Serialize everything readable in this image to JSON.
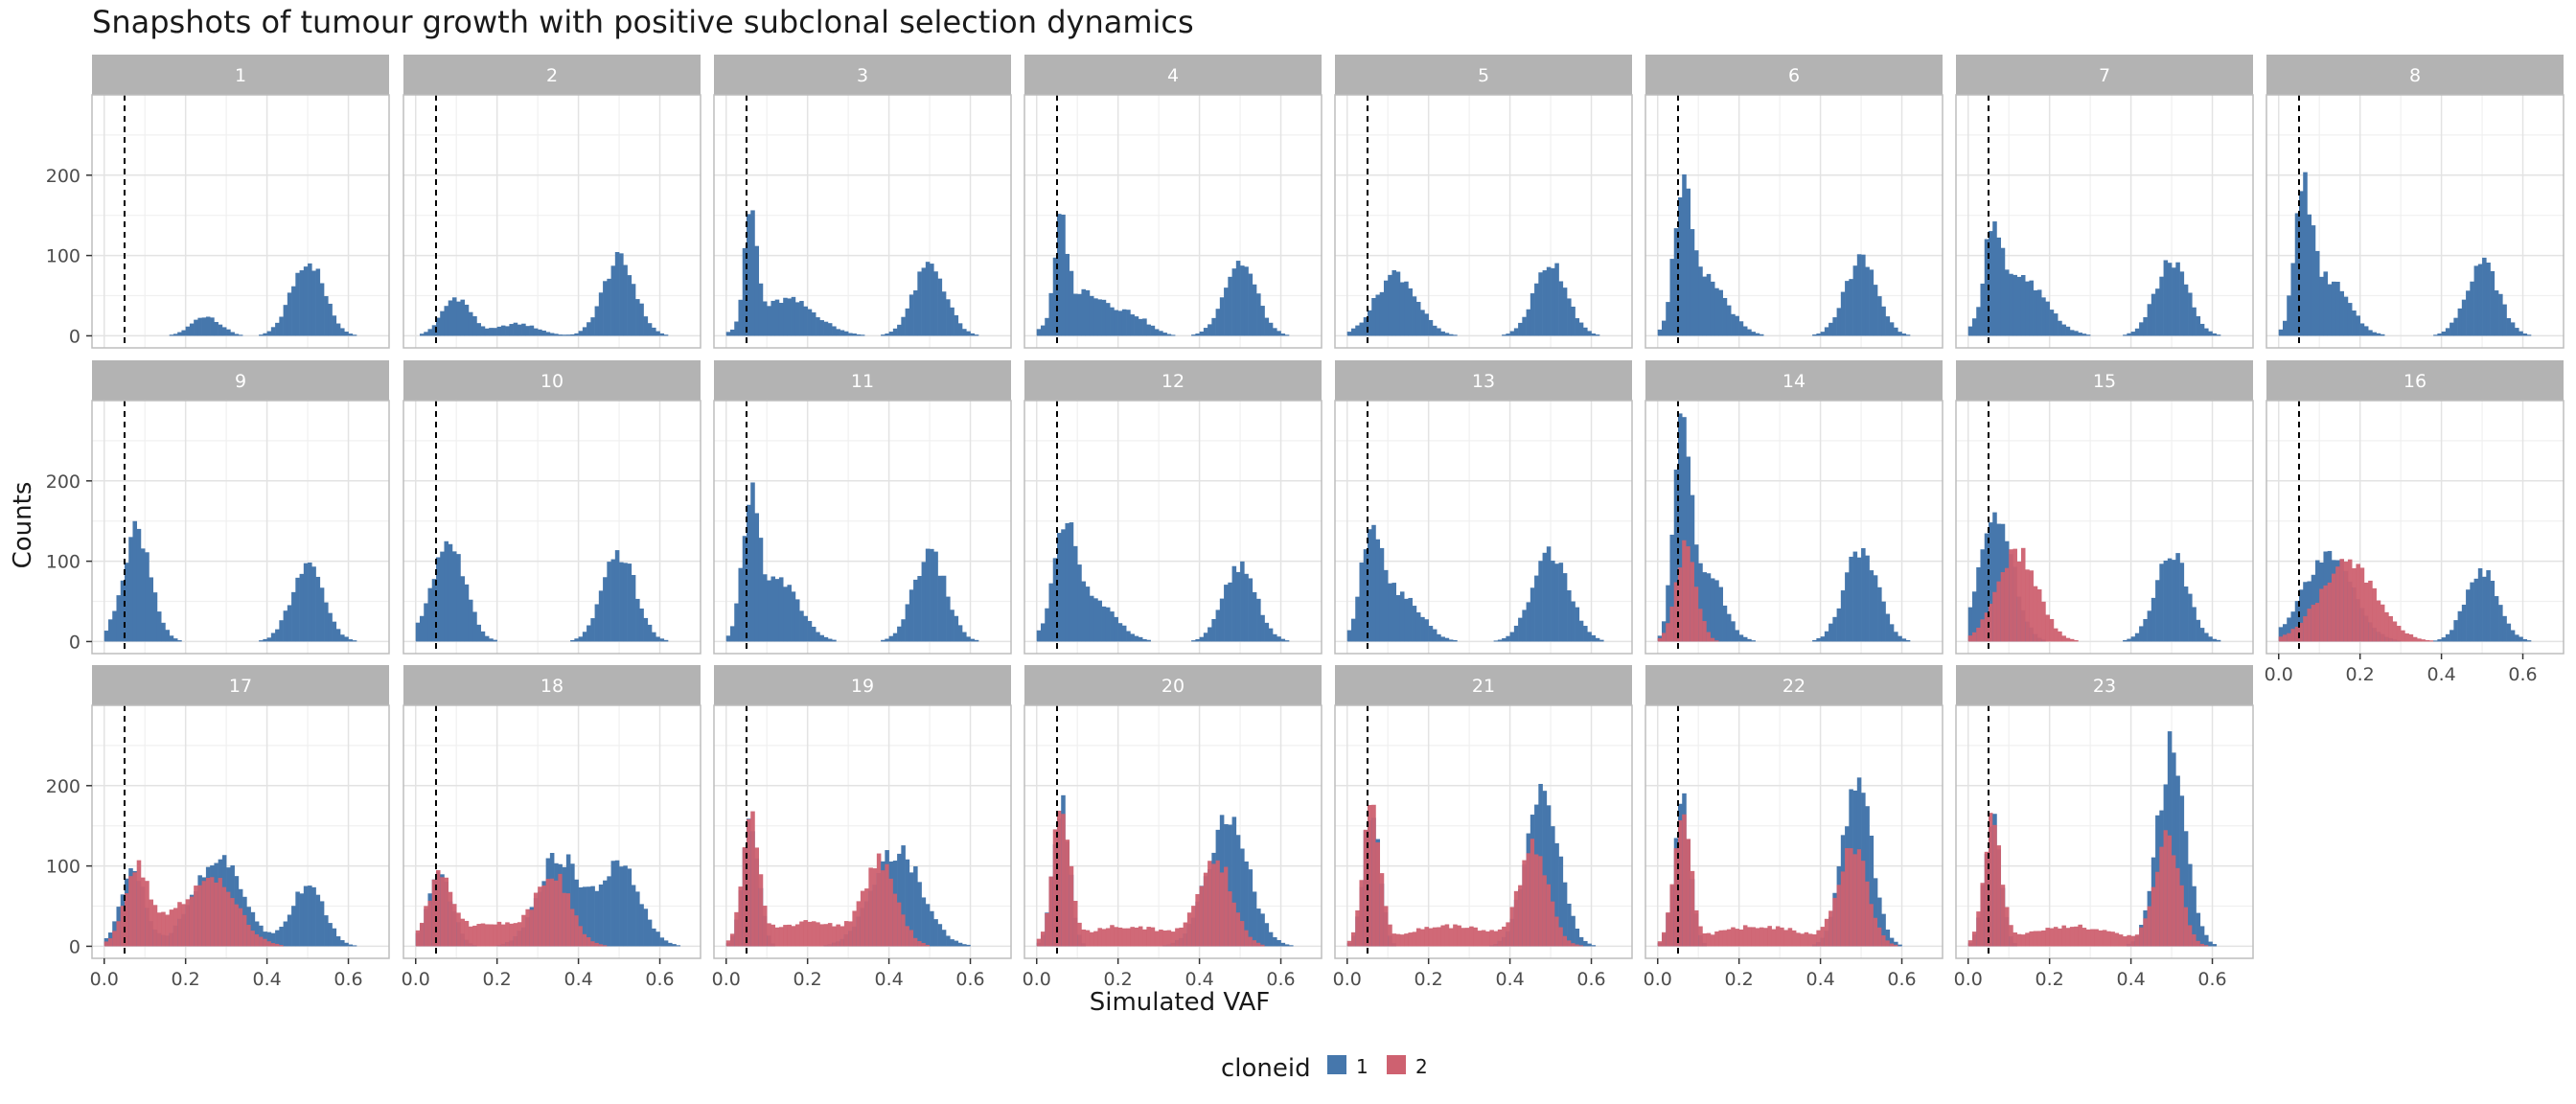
{
  "chart_data": {
    "type": "histogram-facets",
    "title": "Snapshots of tumour growth with positive subclonal selection dynamics",
    "xlabel": "Simulated VAF",
    "ylabel": "Counts",
    "xlim": [
      -0.03,
      0.7
    ],
    "ylim": [
      -15,
      300
    ],
    "x_ticks": [
      "0.0",
      "0.2",
      "0.4",
      "0.6"
    ],
    "y_ticks": [
      "0",
      "100",
      "200"
    ],
    "vline_x": 0.05,
    "legend": {
      "title": "cloneid",
      "position": "bottom",
      "entries": [
        {
          "label": "1",
          "color": "#4677AC"
        },
        {
          "label": "2",
          "color": "#CE6170"
        }
      ]
    },
    "facets": [
      {
        "label": "1",
        "clone1_peaks": [
          [
            0.25,
            25,
            0.035
          ],
          [
            0.5,
            95,
            0.04
          ]
        ],
        "clone2_peaks": []
      },
      {
        "label": "2",
        "clone1_peaks": [
          [
            0.1,
            48,
            0.035
          ],
          [
            0.25,
            15,
            0.05
          ],
          [
            0.5,
            95,
            0.04
          ]
        ],
        "clone2_peaks": []
      },
      {
        "label": "3",
        "clone1_peaks": [
          [
            0.06,
            140,
            0.015
          ],
          [
            0.15,
            45,
            0.07
          ],
          [
            0.5,
            88,
            0.04
          ]
        ],
        "clone2_peaks": []
      },
      {
        "label": "4",
        "clone1_peaks": [
          [
            0.06,
            115,
            0.015
          ],
          [
            0.12,
            55,
            0.06
          ],
          [
            0.24,
            20,
            0.04
          ],
          [
            0.5,
            92,
            0.04
          ]
        ],
        "clone2_peaks": []
      },
      {
        "label": "5",
        "clone1_peaks": [
          [
            0.12,
            78,
            0.05
          ],
          [
            0.5,
            92,
            0.04
          ]
        ],
        "clone2_peaks": []
      },
      {
        "label": "6",
        "clone1_peaks": [
          [
            0.06,
            160,
            0.02
          ],
          [
            0.12,
            70,
            0.05
          ],
          [
            0.5,
            95,
            0.04
          ]
        ],
        "clone2_peaks": []
      },
      {
        "label": "7",
        "clone1_peaks": [
          [
            0.06,
            115,
            0.02
          ],
          [
            0.13,
            70,
            0.06
          ],
          [
            0.5,
            92,
            0.04
          ]
        ],
        "clone2_peaks": []
      },
      {
        "label": "8",
        "clone1_peaks": [
          [
            0.06,
            160,
            0.02
          ],
          [
            0.12,
            70,
            0.05
          ],
          [
            0.5,
            92,
            0.04
          ]
        ],
        "clone2_peaks": []
      },
      {
        "label": "9",
        "clone1_peaks": [
          [
            0.08,
            140,
            0.035
          ],
          [
            0.5,
            92,
            0.04
          ]
        ],
        "clone2_peaks": []
      },
      {
        "label": "10",
        "clone1_peaks": [
          [
            0.08,
            125,
            0.04
          ],
          [
            0.5,
            110,
            0.04
          ]
        ],
        "clone2_peaks": []
      },
      {
        "label": "11",
        "clone1_peaks": [
          [
            0.06,
            160,
            0.02
          ],
          [
            0.13,
            75,
            0.05
          ],
          [
            0.5,
            110,
            0.04
          ]
        ],
        "clone2_peaks": []
      },
      {
        "label": "12",
        "clone1_peaks": [
          [
            0.07,
            130,
            0.03
          ],
          [
            0.15,
            45,
            0.05
          ],
          [
            0.5,
            95,
            0.04
          ]
        ],
        "clone2_peaks": []
      },
      {
        "label": "13",
        "clone1_peaks": [
          [
            0.06,
            130,
            0.025
          ],
          [
            0.13,
            60,
            0.05
          ],
          [
            0.5,
            110,
            0.045
          ]
        ],
        "clone2_peaks": []
      },
      {
        "label": "14",
        "clone1_peaks": [
          [
            0.06,
            270,
            0.02
          ],
          [
            0.12,
            90,
            0.04
          ],
          [
            0.5,
            118,
            0.04
          ]
        ],
        "clone2_peaks": [
          [
            0.07,
            120,
            0.025
          ]
        ]
      },
      {
        "label": "15",
        "clone1_peaks": [
          [
            0.07,
            160,
            0.04
          ],
          [
            0.5,
            110,
            0.04
          ]
        ],
        "clone2_peaks": [
          [
            0.12,
            110,
            0.05
          ]
        ]
      },
      {
        "label": "16",
        "clone1_peaks": [
          [
            0.12,
            110,
            0.06
          ],
          [
            0.5,
            90,
            0.04
          ]
        ],
        "clone2_peaks": [
          [
            0.17,
            95,
            0.07
          ]
        ]
      },
      {
        "label": "17",
        "clone1_peaks": [
          [
            0.07,
            95,
            0.03
          ],
          [
            0.28,
            110,
            0.06
          ],
          [
            0.5,
            78,
            0.04
          ]
        ],
        "clone2_peaks": [
          [
            0.08,
            85,
            0.03
          ],
          [
            0.27,
            70,
            0.06
          ],
          [
            0.18,
            25,
            0.08
          ]
        ]
      },
      {
        "label": "18",
        "clone1_peaks": [
          [
            0.06,
            85,
            0.03
          ],
          [
            0.35,
            112,
            0.05
          ],
          [
            0.5,
            100,
            0.05
          ]
        ],
        "clone2_peaks": [
          [
            0.06,
            80,
            0.03
          ],
          [
            0.34,
            80,
            0.04
          ],
          [
            0.2,
            28,
            0.1
          ]
        ]
      },
      {
        "label": "19",
        "clone1_peaks": [
          [
            0.06,
            160,
            0.02
          ],
          [
            0.42,
            120,
            0.06
          ]
        ],
        "clone2_peaks": [
          [
            0.06,
            150,
            0.02
          ],
          [
            0.38,
            100,
            0.04
          ],
          [
            0.2,
            30,
            0.1
          ]
        ]
      },
      {
        "label": "20",
        "clone1_peaks": [
          [
            0.06,
            180,
            0.02
          ],
          [
            0.47,
            160,
            0.05
          ]
        ],
        "clone2_peaks": [
          [
            0.06,
            170,
            0.02
          ],
          [
            0.44,
            105,
            0.04
          ],
          [
            0.22,
            25,
            0.12
          ]
        ]
      },
      {
        "label": "21",
        "clone1_peaks": [
          [
            0.06,
            180,
            0.02
          ],
          [
            0.48,
            200,
            0.04
          ]
        ],
        "clone2_peaks": [
          [
            0.06,
            170,
            0.02
          ],
          [
            0.46,
            120,
            0.035
          ],
          [
            0.25,
            25,
            0.12
          ]
        ]
      },
      {
        "label": "22",
        "clone1_peaks": [
          [
            0.06,
            180,
            0.02
          ],
          [
            0.49,
            210,
            0.035
          ]
        ],
        "clone2_peaks": [
          [
            0.06,
            170,
            0.02
          ],
          [
            0.48,
            125,
            0.035
          ],
          [
            0.25,
            25,
            0.12
          ]
        ]
      },
      {
        "label": "23",
        "clone1_peaks": [
          [
            0.06,
            170,
            0.02
          ],
          [
            0.5,
            245,
            0.035
          ]
        ],
        "clone2_peaks": [
          [
            0.06,
            165,
            0.02
          ],
          [
            0.49,
            135,
            0.03
          ],
          [
            0.25,
            25,
            0.12
          ]
        ]
      }
    ]
  }
}
